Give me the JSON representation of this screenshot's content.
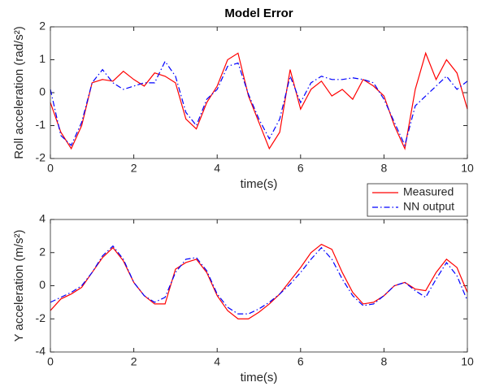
{
  "chart_data": [
    {
      "type": "line",
      "title": "Model Error",
      "x_label": "time(s)",
      "y_label": "Roll acceleration (rad/s²)",
      "x": [
        0,
        0.25,
        0.5,
        0.75,
        1,
        1.25,
        1.5,
        1.75,
        2,
        2.25,
        2.5,
        2.75,
        3,
        3.25,
        3.5,
        3.75,
        4,
        4.25,
        4.5,
        4.75,
        5,
        5.25,
        5.5,
        5.75,
        6,
        6.25,
        6.5,
        6.75,
        7,
        7.25,
        7.5,
        7.75,
        8,
        8.25,
        8.5,
        8.75,
        9,
        9.25,
        9.5,
        9.75,
        10
      ],
      "series": [
        {
          "name": "Measured",
          "color": "#ff0000",
          "style": "solid",
          "values": [
            -0.3,
            -1.2,
            -1.7,
            -1.0,
            0.3,
            0.4,
            0.35,
            0.65,
            0.4,
            0.2,
            0.6,
            0.5,
            0.3,
            -0.8,
            -1.1,
            -0.3,
            0.2,
            1.0,
            1.2,
            -0.1,
            -0.9,
            -1.7,
            -1.2,
            0.7,
            -0.5,
            0.1,
            0.35,
            -0.1,
            0.1,
            -0.2,
            0.4,
            0.2,
            -0.1,
            -1.0,
            -1.7,
            0.1,
            1.2,
            0.4,
            1.0,
            0.6,
            -0.5
          ]
        },
        {
          "name": "NN output",
          "color": "#0000ff",
          "style": "dashdot",
          "values": [
            0.1,
            -1.3,
            -1.6,
            -0.9,
            0.3,
            0.7,
            0.3,
            0.1,
            0.2,
            0.3,
            0.3,
            0.95,
            0.5,
            -0.6,
            -1.0,
            -0.2,
            0.1,
            0.8,
            0.9,
            -0.05,
            -0.8,
            -1.4,
            -0.8,
            0.5,
            -0.3,
            0.3,
            0.5,
            0.4,
            0.4,
            0.45,
            0.4,
            0.3,
            -0.2,
            -0.9,
            -1.6,
            -0.4,
            -0.1,
            0.2,
            0.5,
            0.1,
            0.35
          ]
        }
      ],
      "xlim": [
        0,
        10
      ],
      "xticks": [
        0,
        2,
        4,
        6,
        8,
        10
      ],
      "ylim": [
        -2,
        2
      ],
      "yticks": [
        -2,
        -1,
        0,
        1,
        2
      ],
      "legend": "outside-southeast"
    },
    {
      "type": "line",
      "x_label": "time(s)",
      "y_label": "Y acceleration (m/s²)",
      "x": [
        0,
        0.25,
        0.5,
        0.75,
        1,
        1.25,
        1.5,
        1.75,
        2,
        2.25,
        2.5,
        2.75,
        3,
        3.25,
        3.5,
        3.75,
        4,
        4.25,
        4.5,
        4.75,
        5,
        5.25,
        5.5,
        5.75,
        6,
        6.25,
        6.5,
        6.75,
        7,
        7.25,
        7.5,
        7.75,
        8,
        8.25,
        8.5,
        8.75,
        9,
        9.25,
        9.5,
        9.75,
        10
      ],
      "series": [
        {
          "name": "Measured",
          "color": "#ff0000",
          "style": "solid",
          "values": [
            -1.5,
            -0.8,
            -0.5,
            -0.1,
            0.8,
            1.7,
            2.3,
            1.5,
            0.2,
            -0.6,
            -1.1,
            -1.1,
            1.0,
            1.4,
            1.6,
            0.8,
            -0.6,
            -1.5,
            -2.0,
            -2.0,
            -1.6,
            -1.1,
            -0.5,
            0.3,
            1.1,
            2.0,
            2.5,
            2.2,
            0.8,
            -0.4,
            -1.1,
            -1.0,
            -0.6,
            0.0,
            0.2,
            -0.2,
            -0.3,
            0.8,
            1.6,
            1.1,
            -0.4
          ]
        },
        {
          "name": "NN output",
          "color": "#0000ff",
          "style": "dashdot",
          "values": [
            -1.0,
            -0.7,
            -0.4,
            0.0,
            0.8,
            1.8,
            2.4,
            1.6,
            0.2,
            -0.6,
            -1.0,
            -0.7,
            0.8,
            1.6,
            1.7,
            0.9,
            -0.5,
            -1.3,
            -1.7,
            -1.7,
            -1.4,
            -1.0,
            -0.5,
            0.1,
            0.8,
            1.6,
            2.3,
            1.6,
            0.4,
            -0.6,
            -1.2,
            -1.1,
            -0.6,
            0.0,
            0.2,
            -0.3,
            -0.7,
            0.4,
            1.4,
            0.6,
            -0.9
          ]
        }
      ],
      "xlim": [
        0,
        10
      ],
      "xticks": [
        0,
        2,
        4,
        6,
        8,
        10
      ],
      "ylim": [
        -4,
        4
      ],
      "yticks": [
        -4,
        -2,
        0,
        2,
        4
      ],
      "legend": false
    }
  ]
}
